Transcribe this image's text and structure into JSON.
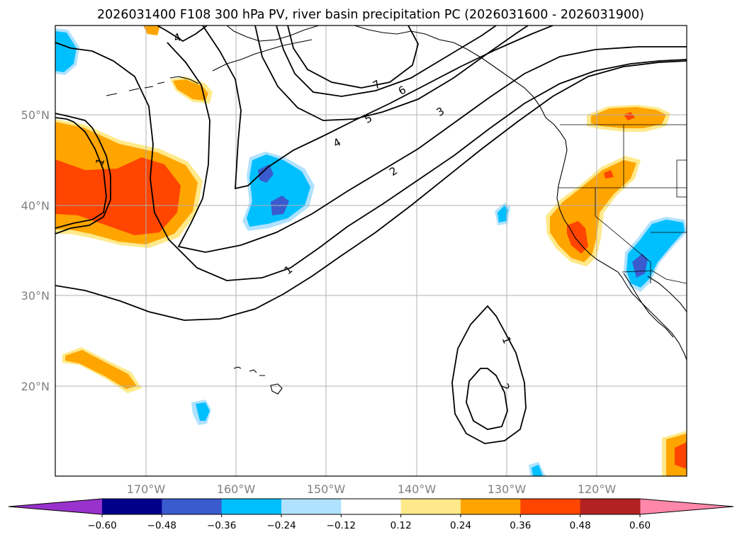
{
  "title": "2026031400 F108 300 hPa PV, river basin precipitation PC (2026031600 - 2026031900)",
  "map": {
    "projection": "PlateCarree",
    "lon_range": [
      -180,
      -110
    ],
    "lat_range": [
      10,
      60
    ],
    "gridlines": true,
    "lat_labels": [
      "50°N",
      "40°N",
      "30°N",
      "20°N"
    ],
    "lon_labels": [
      "170°W",
      "160°W",
      "150°W",
      "140°W",
      "130°W",
      "120°W"
    ],
    "contour_labels": [
      "4",
      "7",
      "6",
      "5",
      "3",
      "4",
      "2",
      "1",
      "1",
      "1",
      "2"
    ]
  },
  "colorbar": {
    "ticks": [
      "−0.60",
      "−0.48",
      "−0.36",
      "−0.24",
      "−0.12",
      "0.12",
      "0.24",
      "0.36",
      "0.48",
      "0.60"
    ],
    "colors": [
      "#9932cc",
      "#00008b",
      "#3a5bcd",
      "#00bfff",
      "#b0e2ff",
      "#ffffff",
      "#ffe98a",
      "#ffa500",
      "#ff4500",
      "#b22222",
      "#ff88aa"
    ],
    "extend": "both"
  },
  "shading_colors": {
    "pos_light": "#ffe98a",
    "pos_mid": "#ffa500",
    "pos_high": "#ff4500",
    "neg_light": "#b0e2ff",
    "neg_mid": "#00bfff",
    "neg_high": "#3a5bcd"
  }
}
